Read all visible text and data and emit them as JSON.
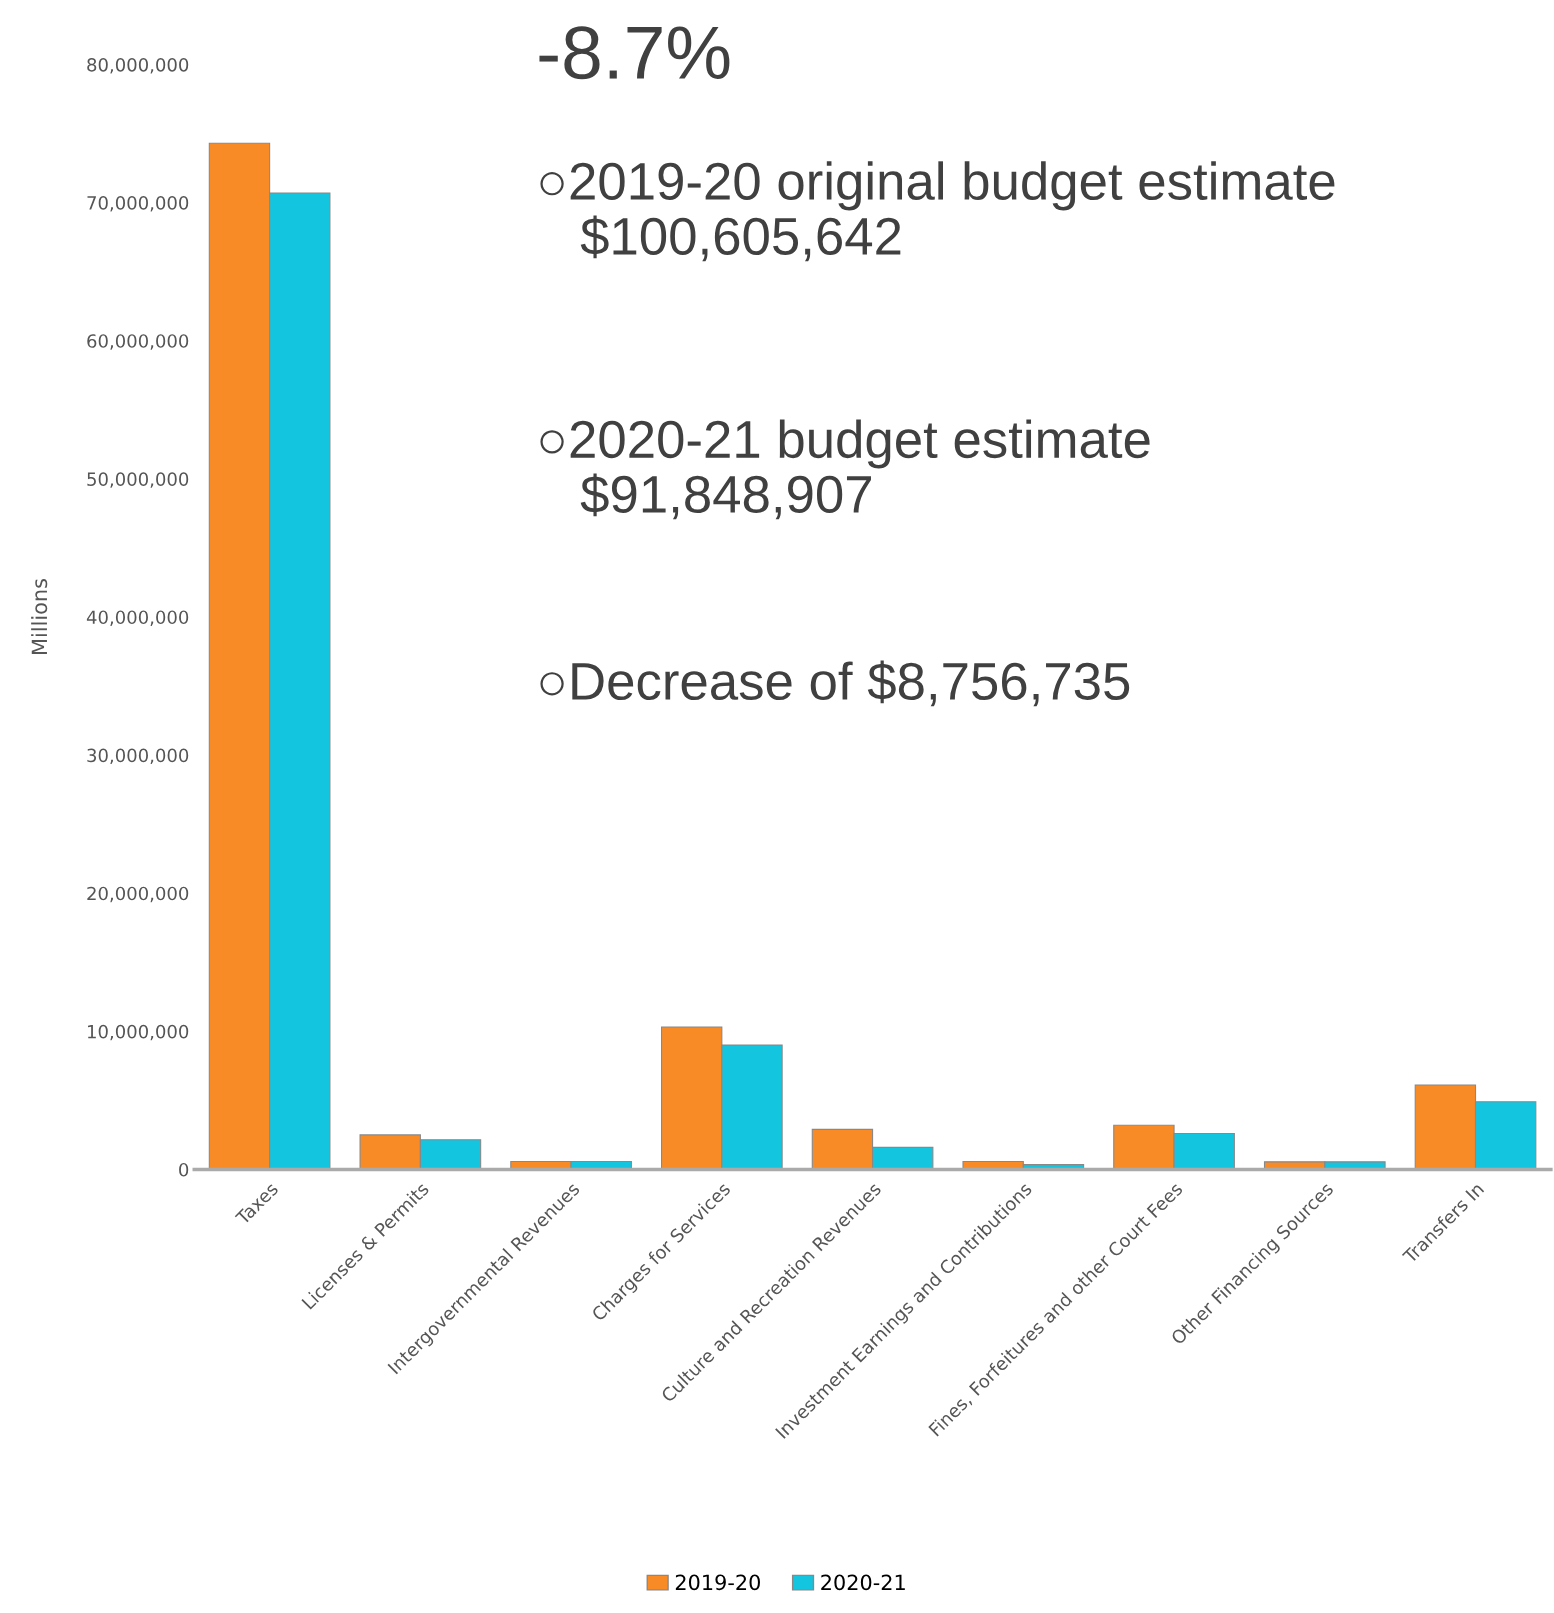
{
  "chart_data": {
    "type": "bar",
    "ylabel": "Millions",
    "categories": [
      "Taxes",
      "Licenses & Permits",
      "Intergovernmental Revenues",
      "Charges for Services",
      "Culture and Recreation Revenues",
      "Investment Earnings and Contributions",
      "Fines, Forfeitures and other Court Fees",
      "Other Financing Sources",
      "Transfers In"
    ],
    "series": [
      {
        "name": "2019-20",
        "color": "#f98b27",
        "values": [
          74300000,
          2500000,
          570000,
          10300000,
          2900000,
          570000,
          3200000,
          550000,
          6100000
        ]
      },
      {
        "name": "2020-21",
        "color": "#14c5e0",
        "values": [
          70700000,
          2150000,
          570000,
          9000000,
          1600000,
          350000,
          2600000,
          550000,
          4900000
        ]
      }
    ],
    "ylim": [
      0,
      80000000
    ],
    "yticks": [
      {
        "value": 0,
        "label": "0"
      },
      {
        "value": 10000000,
        "label": "10,000,000"
      },
      {
        "value": 20000000,
        "label": "20,000,000"
      },
      {
        "value": 30000000,
        "label": "30,000,000"
      },
      {
        "value": 40000000,
        "label": "40,000,000"
      },
      {
        "value": 50000000,
        "label": "50,000,000"
      },
      {
        "value": 60000000,
        "label": "60,000,000"
      },
      {
        "value": 70000000,
        "label": "70,000,000"
      },
      {
        "value": 80000000,
        "label": "80,000,000"
      }
    ],
    "annotations": [
      "-8.7%",
      "○2019-20 original budget estimate\n   $100,605,642",
      "○2020-21 budget estimate\n   $91,848,907",
      "○Decrease of $8,756,735"
    ],
    "legend": "bottom",
    "grid": false
  }
}
